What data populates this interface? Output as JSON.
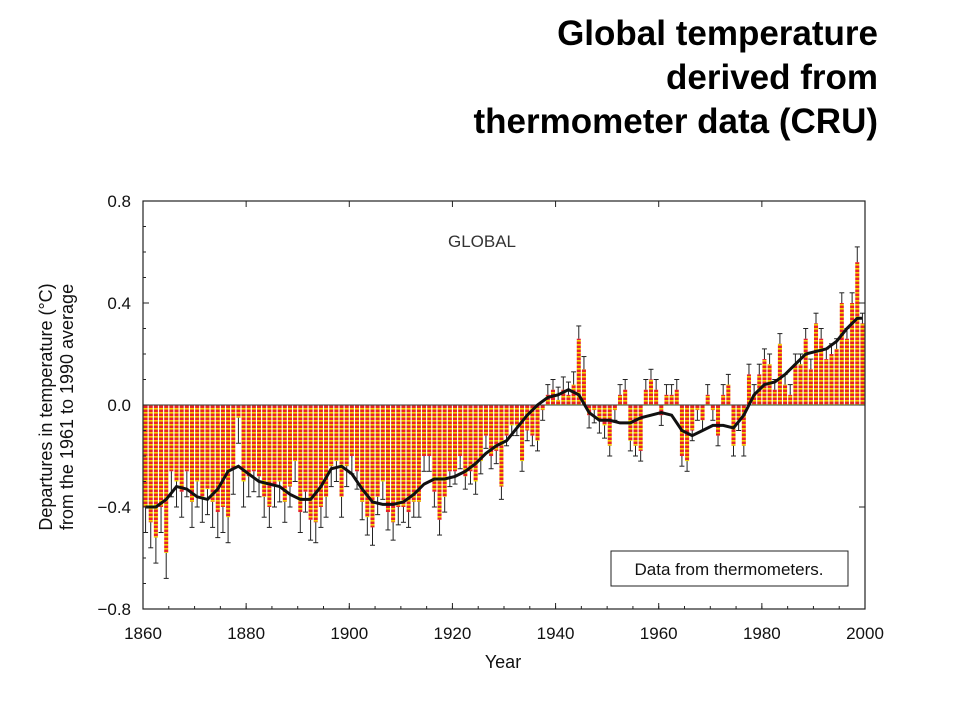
{
  "slide": {
    "title_lines": [
      "Global temperature",
      "derived from",
      "thermometer data (CRU)"
    ]
  },
  "chart_data": {
    "type": "bar",
    "title": "",
    "panel_label": "GLOBAL",
    "xlabel": "Year",
    "ylabel_lines": [
      "Departures in temperature (°C)",
      "from the 1961 to 1990 average"
    ],
    "legend_box_text": "Data from thermometers.",
    "xlim": [
      1860,
      2000
    ],
    "ylim": [
      -0.8,
      0.8
    ],
    "x_ticks": [
      1860,
      1880,
      1900,
      1920,
      1940,
      1960,
      1980,
      2000
    ],
    "x_tick_labels": [
      "1860",
      "1880",
      "1900",
      "1920",
      "1940",
      "1960",
      "1980",
      "2000"
    ],
    "y_ticks": [
      0.8,
      0.4,
      0.0,
      -0.4,
      -0.8
    ],
    "y_tick_labels": [
      "0.8",
      "0.4",
      "0.0",
      "−0.4",
      "−0.8"
    ],
    "grid": false,
    "bar_colors": {
      "fill": "#e8202a",
      "stripe": "#f2d400"
    },
    "smooth_color": "#111111",
    "series": [
      {
        "kind": "annual_bars",
        "x": [
          1860,
          1861,
          1862,
          1863,
          1864,
          1865,
          1866,
          1867,
          1868,
          1869,
          1870,
          1871,
          1872,
          1873,
          1874,
          1875,
          1876,
          1877,
          1878,
          1879,
          1880,
          1881,
          1882,
          1883,
          1884,
          1885,
          1886,
          1887,
          1888,
          1889,
          1890,
          1891,
          1892,
          1893,
          1894,
          1895,
          1896,
          1897,
          1898,
          1899,
          1900,
          1901,
          1902,
          1903,
          1904,
          1905,
          1906,
          1907,
          1908,
          1909,
          1910,
          1911,
          1912,
          1913,
          1914,
          1915,
          1916,
          1917,
          1918,
          1919,
          1920,
          1921,
          1922,
          1923,
          1924,
          1925,
          1926,
          1927,
          1928,
          1929,
          1930,
          1931,
          1932,
          1933,
          1934,
          1935,
          1936,
          1937,
          1938,
          1939,
          1940,
          1941,
          1942,
          1943,
          1944,
          1945,
          1946,
          1947,
          1948,
          1949,
          1950,
          1951,
          1952,
          1953,
          1954,
          1955,
          1956,
          1957,
          1958,
          1959,
          1960,
          1961,
          1962,
          1963,
          1964,
          1965,
          1966,
          1967,
          1968,
          1969,
          1970,
          1971,
          1972,
          1973,
          1974,
          1975,
          1976,
          1977,
          1978,
          1979,
          1980,
          1981,
          1982,
          1983,
          1984,
          1985,
          1986,
          1987,
          1988,
          1989,
          1990,
          1991,
          1992,
          1993,
          1994,
          1995,
          1996,
          1997,
          1998,
          1999
        ],
        "y": [
          -0.4,
          -0.46,
          -0.52,
          -0.4,
          -0.58,
          -0.26,
          -0.3,
          -0.34,
          -0.26,
          -0.38,
          -0.3,
          -0.36,
          -0.33,
          -0.38,
          -0.42,
          -0.4,
          -0.44,
          -0.25,
          -0.05,
          -0.3,
          -0.28,
          -0.26,
          -0.28,
          -0.36,
          -0.4,
          -0.32,
          -0.3,
          -0.38,
          -0.32,
          -0.22,
          -0.42,
          -0.34,
          -0.45,
          -0.46,
          -0.4,
          -0.36,
          -0.24,
          -0.22,
          -0.36,
          -0.24,
          -0.2,
          -0.26,
          -0.38,
          -0.44,
          -0.48,
          -0.36,
          -0.3,
          -0.42,
          -0.46,
          -0.4,
          -0.4,
          -0.42,
          -0.38,
          -0.38,
          -0.2,
          -0.2,
          -0.34,
          -0.45,
          -0.36,
          -0.26,
          -0.26,
          -0.2,
          -0.28,
          -0.26,
          -0.3,
          -0.22,
          -0.12,
          -0.2,
          -0.18,
          -0.32,
          -0.12,
          -0.08,
          -0.08,
          -0.22,
          -0.1,
          -0.12,
          -0.14,
          -0.02,
          0.04,
          0.06,
          0.02,
          0.06,
          0.04,
          0.08,
          0.26,
          0.14,
          -0.04,
          -0.02,
          -0.06,
          -0.08,
          -0.16,
          -0.02,
          0.04,
          0.06,
          -0.14,
          -0.16,
          -0.18,
          0.06,
          0.1,
          0.06,
          -0.04,
          0.04,
          0.04,
          0.06,
          -0.2,
          -0.22,
          -0.1,
          -0.02,
          -0.06,
          0.04,
          -0.02,
          -0.12,
          0.04,
          0.08,
          -0.16,
          -0.06,
          -0.16,
          0.12,
          0.04,
          0.12,
          0.18,
          0.16,
          0.06,
          0.24,
          0.08,
          0.04,
          0.16,
          0.16,
          0.26,
          0.14,
          0.32,
          0.26,
          0.18,
          0.2,
          0.22,
          0.4,
          0.26,
          0.4,
          0.56,
          0.32
        ],
        "err": [
          0.1,
          0.1,
          0.1,
          0.1,
          0.1,
          0.1,
          0.1,
          0.1,
          0.1,
          0.1,
          0.1,
          0.1,
          0.1,
          0.1,
          0.1,
          0.1,
          0.1,
          0.1,
          0.1,
          0.1,
          0.08,
          0.08,
          0.08,
          0.08,
          0.08,
          0.08,
          0.08,
          0.08,
          0.08,
          0.08,
          0.08,
          0.08,
          0.08,
          0.08,
          0.08,
          0.08,
          0.08,
          0.08,
          0.08,
          0.08,
          0.07,
          0.07,
          0.07,
          0.07,
          0.07,
          0.07,
          0.07,
          0.07,
          0.07,
          0.07,
          0.06,
          0.06,
          0.06,
          0.06,
          0.06,
          0.06,
          0.06,
          0.06,
          0.06,
          0.06,
          0.05,
          0.05,
          0.05,
          0.05,
          0.05,
          0.05,
          0.05,
          0.05,
          0.05,
          0.05,
          0.04,
          0.04,
          0.04,
          0.04,
          0.04,
          0.04,
          0.04,
          0.04,
          0.04,
          0.04,
          0.05,
          0.05,
          0.05,
          0.05,
          0.05,
          0.05,
          0.05,
          0.05,
          0.05,
          0.05,
          0.04,
          0.04,
          0.04,
          0.04,
          0.04,
          0.04,
          0.04,
          0.04,
          0.04,
          0.04,
          0.04,
          0.04,
          0.04,
          0.04,
          0.04,
          0.04,
          0.04,
          0.04,
          0.04,
          0.04,
          0.04,
          0.04,
          0.04,
          0.04,
          0.04,
          0.04,
          0.04,
          0.04,
          0.04,
          0.04,
          0.04,
          0.04,
          0.04,
          0.04,
          0.04,
          0.04,
          0.04,
          0.04,
          0.04,
          0.04,
          0.04,
          0.04,
          0.04,
          0.04,
          0.04,
          0.04,
          0.04,
          0.04,
          0.06,
          0.04
        ]
      },
      {
        "kind": "smoothed_curve",
        "x": [
          1860,
          1862,
          1864,
          1866,
          1868,
          1870,
          1872,
          1874,
          1876,
          1878,
          1880,
          1882,
          1884,
          1886,
          1888,
          1890,
          1892,
          1894,
          1896,
          1898,
          1900,
          1902,
          1904,
          1906,
          1908,
          1910,
          1912,
          1914,
          1916,
          1918,
          1920,
          1922,
          1924,
          1926,
          1928,
          1930,
          1932,
          1934,
          1936,
          1938,
          1940,
          1942,
          1944,
          1946,
          1948,
          1950,
          1952,
          1954,
          1956,
          1958,
          1960,
          1962,
          1964,
          1966,
          1968,
          1970,
          1972,
          1974,
          1976,
          1978,
          1980,
          1982,
          1984,
          1986,
          1988,
          1990,
          1992,
          1994,
          1996,
          1998,
          1999
        ],
        "y": [
          -0.4,
          -0.4,
          -0.37,
          -0.32,
          -0.33,
          -0.36,
          -0.37,
          -0.33,
          -0.26,
          -0.24,
          -0.27,
          -0.3,
          -0.31,
          -0.32,
          -0.35,
          -0.37,
          -0.37,
          -0.32,
          -0.25,
          -0.24,
          -0.27,
          -0.33,
          -0.38,
          -0.39,
          -0.39,
          -0.38,
          -0.35,
          -0.31,
          -0.29,
          -0.29,
          -0.28,
          -0.26,
          -0.23,
          -0.19,
          -0.16,
          -0.14,
          -0.09,
          -0.04,
          0.0,
          0.03,
          0.04,
          0.06,
          0.04,
          -0.03,
          -0.06,
          -0.06,
          -0.07,
          -0.07,
          -0.05,
          -0.04,
          -0.03,
          -0.04,
          -0.1,
          -0.12,
          -0.1,
          -0.08,
          -0.08,
          -0.09,
          -0.04,
          0.04,
          0.08,
          0.09,
          0.12,
          0.16,
          0.2,
          0.21,
          0.22,
          0.25,
          0.3,
          0.34,
          0.34
        ]
      }
    ]
  }
}
